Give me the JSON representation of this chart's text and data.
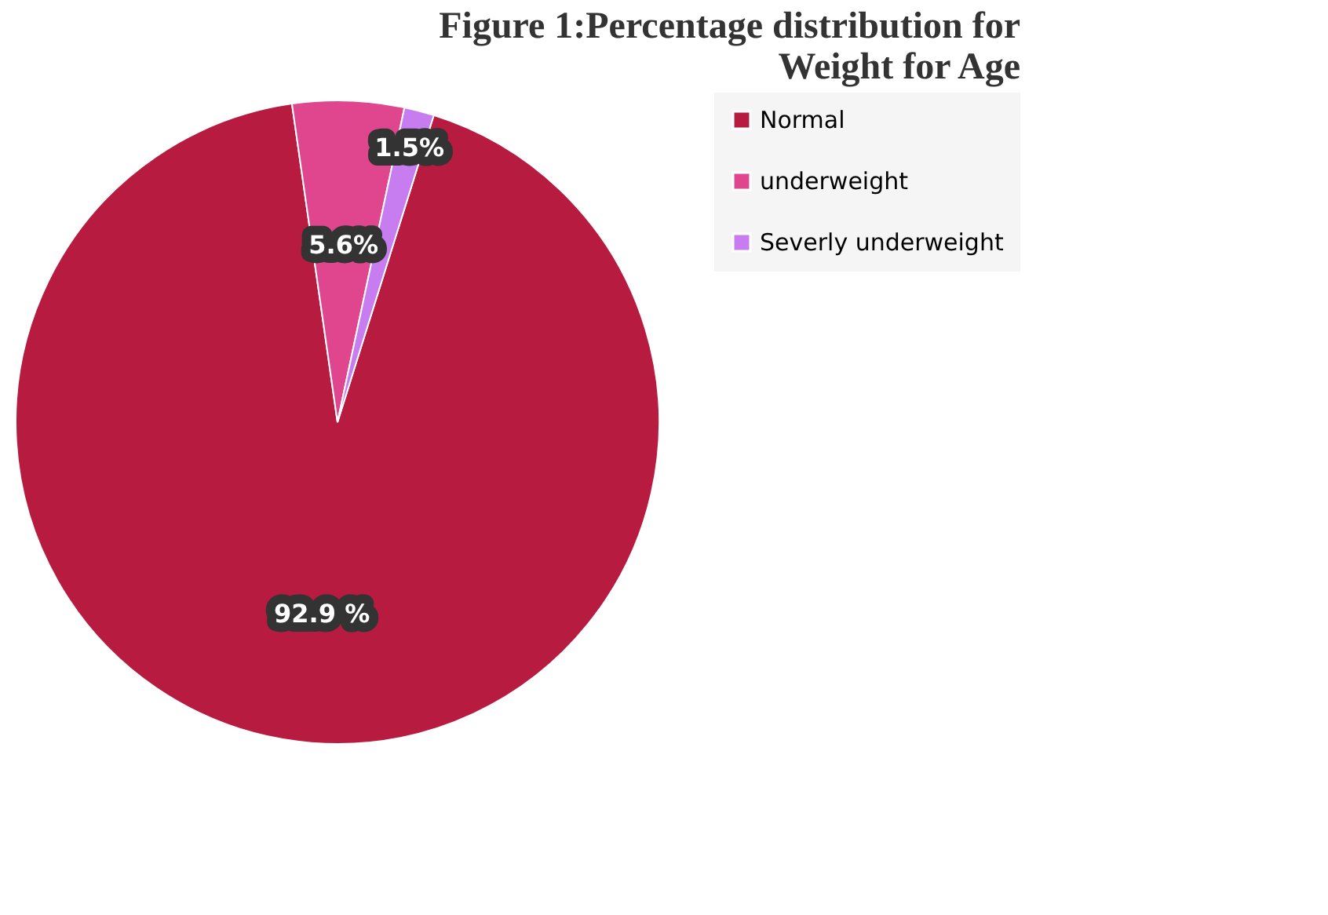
{
  "chart_data": {
    "type": "pie",
    "title": "Figure 1:Percentage distribution for Weight for Age",
    "categories": [
      "Normal",
      "underweight",
      "Severly underweight"
    ],
    "values": [
      92.9,
      5.6,
      1.5
    ],
    "colors": [
      "#b71c40",
      "#e0468e",
      "#c77cf0"
    ],
    "value_labels": [
      "92.9 %",
      "5.6%",
      "1.5%"
    ],
    "legend": "right"
  }
}
